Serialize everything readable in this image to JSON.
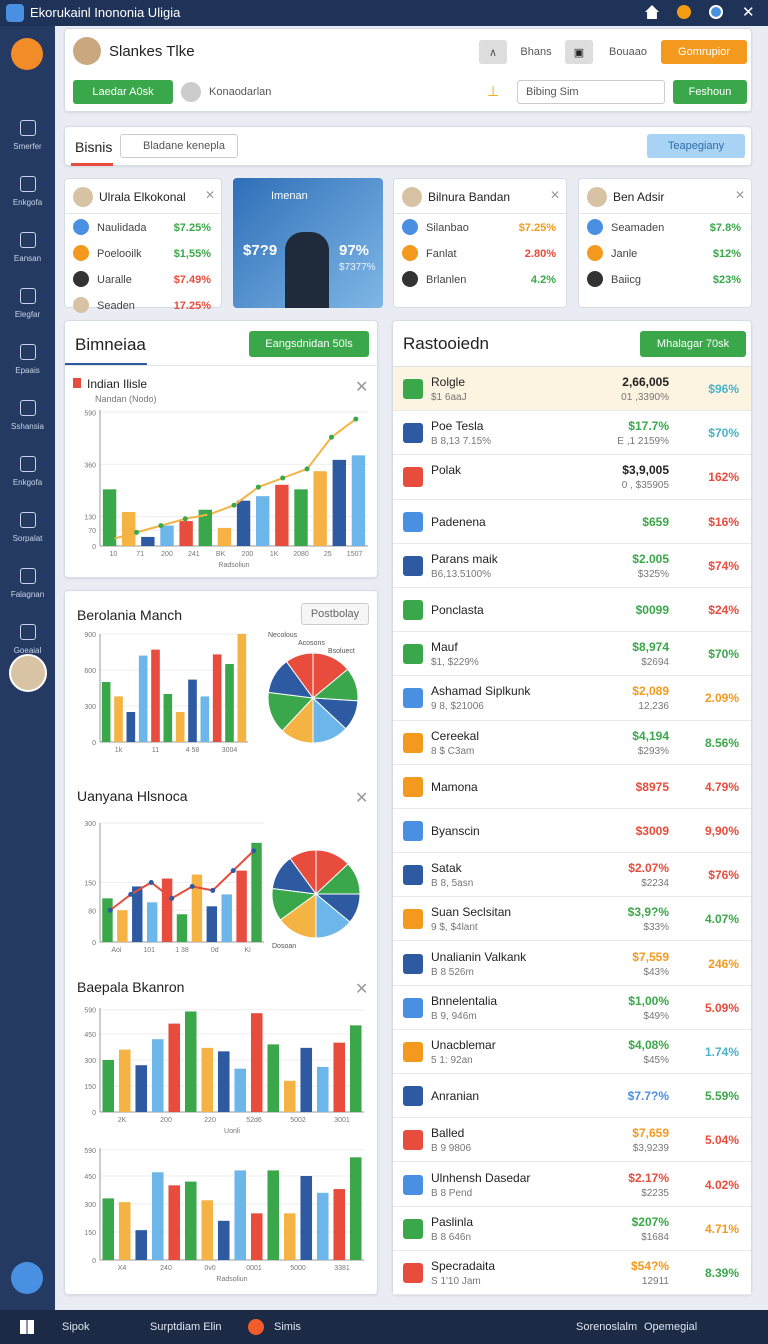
{
  "window": {
    "title": "Ekorukainl Inononia Uligia"
  },
  "sidebar": {
    "items": [
      "Smerfer",
      "Enkgofa",
      "Eansan",
      "Elegfar",
      "Epaais",
      "Sshansia",
      "Enkgofa",
      "Sorpalat",
      "Falagnan",
      "Goeaial"
    ]
  },
  "header": {
    "name": "Slankes Tlke",
    "buttons": [
      "Bhans",
      "Bouaao",
      "Gomrupior"
    ],
    "action": "Laedar A0sk",
    "user": "Konaodarlan",
    "dropdown": "Bibing Sim",
    "submit": "Feshoun"
  },
  "search": {
    "tab": "Bisnis",
    "placeholder": "Bladane kenepla",
    "button": "Teapegiany"
  },
  "cards": [
    {
      "title": "Ulrala Elkokonal",
      "rows": [
        {
          "label": "Naulidada",
          "value": "$7.25%"
        },
        {
          "label": "Poelooilk",
          "value": "$1,55%"
        },
        {
          "label": "Uaralle",
          "value": "$7.49%"
        },
        {
          "label": "Seaden",
          "value": "17.25%"
        }
      ]
    },
    {
      "title": "Imenan",
      "value": "$7?9",
      "percent": "97%",
      "sub": "$7377%"
    },
    {
      "title": "Bilnura Bandan",
      "rows": [
        {
          "label": "Silanbao",
          "value": "$7.25%"
        },
        {
          "label": "Fanlat",
          "value": "2.80%"
        },
        {
          "label": "Brlanlen",
          "value": "4.2%"
        }
      ]
    },
    {
      "title": "Ben Adsir",
      "rows": [
        {
          "label": "Seamaden",
          "value": "$7.8%"
        },
        {
          "label": "Janle",
          "value": "$12%"
        },
        {
          "label": "Baiicg",
          "value": "$23%"
        }
      ]
    }
  ],
  "panel_top": {
    "title": "Bimneiaa",
    "button": "Eangsdnidan 50ls"
  },
  "panel_bottom": {
    "sections": [
      "Berolania Manch",
      "Uanyana Hlsnoca",
      "Baepala Bkanron"
    ],
    "button": "Postbolay"
  },
  "charts": [
    {
      "type": "bar-line",
      "title": "Indian Ilisle",
      "subtitle": "Nandan (Nodo)",
      "xlabel": "Radsoliun",
      "ylim": [
        0,
        600
      ],
      "yticks": [
        0,
        70,
        130,
        360,
        590
      ],
      "categories": [
        "10",
        "71",
        "200",
        "241",
        "BK",
        "200",
        "1K",
        "2080",
        "25",
        "1507"
      ],
      "bars": [
        250,
        150,
        40,
        90,
        110,
        160,
        80,
        200,
        220,
        270,
        250,
        330,
        380,
        400
      ],
      "line": [
        30,
        60,
        90,
        120,
        140,
        180,
        260,
        300,
        340,
        480,
        560
      ]
    },
    {
      "type": "bar-pie",
      "ylim": [
        0,
        900
      ],
      "yticks": [
        0,
        300,
        600,
        900
      ],
      "categories": [
        "1k",
        "11",
        "4 58",
        "3004"
      ],
      "bars": [
        500,
        380,
        250,
        720,
        770,
        400,
        250,
        520,
        380,
        730,
        650,
        900
      ],
      "pie": [
        14,
        12,
        11,
        13,
        12,
        15,
        13,
        10
      ],
      "pie_labels": [
        "Necolous",
        "Acosons",
        "Bsoluect"
      ]
    },
    {
      "type": "bar-line-pie",
      "ylim": [
        0,
        300
      ],
      "yticks": [
        0,
        80,
        150,
        300
      ],
      "categories": [
        "Aoi",
        "101",
        "1 38",
        "0d",
        "Ki"
      ],
      "bars": [
        110,
        80,
        140,
        100,
        160,
        70,
        170,
        90,
        120,
        180,
        250
      ],
      "line": [
        80,
        120,
        150,
        110,
        140,
        130,
        180,
        230
      ],
      "pie": [
        13,
        12,
        11,
        14,
        15,
        12,
        13,
        10
      ],
      "pie_labels": [
        "Dosoan"
      ]
    },
    {
      "type": "bar",
      "xlabel": "Uonli",
      "ylim": [
        0,
        600
      ],
      "yticks": [
        0,
        150,
        300,
        450,
        590
      ],
      "categories": [
        "2K",
        "200",
        "220",
        "52d6",
        "5002",
        "3001"
      ],
      "bars": [
        300,
        360,
        270,
        420,
        510,
        580,
        370,
        350,
        250,
        570,
        390,
        180,
        370,
        260,
        400,
        500
      ]
    },
    {
      "type": "bar",
      "xlabel": "Radsoliun",
      "ylim": [
        0,
        600
      ],
      "yticks": [
        0,
        150,
        300,
        450,
        590
      ],
      "categories": [
        "X4",
        "240",
        "0v0",
        "0001",
        "5000",
        "3381"
      ],
      "bars": [
        330,
        310,
        160,
        470,
        400,
        420,
        320,
        210,
        480,
        250,
        480,
        250,
        450,
        360,
        380,
        550
      ]
    }
  ],
  "list": {
    "title": "Rastooiedn",
    "button": "Mhalagar 70sk",
    "rows": [
      {
        "name": "Rolgle",
        "sub": "$1 6aaJ",
        "value": "2,66,005",
        "subvalue": "01 ,3390%",
        "change": "$96%"
      },
      {
        "name": "Poe Tesla",
        "sub": "B 8,13 7.15%",
        "value": "$17.7%",
        "subvalue": "E ,1 2159%",
        "change": "$70%"
      },
      {
        "name": "Polak",
        "value": "$3,9,005",
        "subvalue": "0 , $35905",
        "change": "162%"
      },
      {
        "name": "Padenena",
        "value": "$659",
        "change": "$16%"
      },
      {
        "name": "Parans maik",
        "sub": "B6,13.5100%",
        "value": "$2.005",
        "subvalue": "$325%",
        "change": "$74%"
      },
      {
        "name": "Ponclasta",
        "value": "$0099",
        "change": "$24%"
      },
      {
        "name": "Mauf",
        "sub": "$1, $229%",
        "value": "$8,974",
        "subvalue": "$2694",
        "change": "$70%"
      },
      {
        "name": "Ashamad Siplkunk",
        "sub": "9 8, $21006",
        "value": "$2,089",
        "subvalue": "12,236",
        "change": "2.09%"
      },
      {
        "name": "Cereekal",
        "sub": "8 $ C3am",
        "value": "$4,194",
        "subvalue": "$293%",
        "change": "8.56%"
      },
      {
        "name": "Mamona",
        "value": "$8975",
        "change": "4.79%"
      },
      {
        "name": "Byanscin",
        "value": "$3009",
        "change": "9,90%"
      },
      {
        "name": "Satak",
        "sub": "B 8, 5asn",
        "value": "$2.07%",
        "subvalue": "$2234",
        "change": "$76%"
      },
      {
        "name": "Suan Seclsitan",
        "sub": "9 $, $4lant",
        "value": "$3,9?%",
        "subvalue": "$33%",
        "change": "4.07%"
      },
      {
        "name": "Unalianin Valkank",
        "sub": "B 8 526m",
        "value": "$7,559",
        "subvalue": "$43%",
        "change": "246%"
      },
      {
        "name": "Bnnelentalia",
        "sub": "B 9, 946m",
        "value": "$1,00%",
        "subvalue": "$49%",
        "change": "5.09%"
      },
      {
        "name": "Unacblemar",
        "sub": "5 1: 92an",
        "value": "$4,08%",
        "subvalue": "$45%",
        "change": "1.74%"
      },
      {
        "name": "Anranian",
        "value": "$7.7?%",
        "change": "5.59%"
      },
      {
        "name": "Balled",
        "sub": "B 9 9806",
        "value": "$7,659",
        "subvalue": "$3,9239",
        "change": "5.04%"
      },
      {
        "name": "Ulnhensh Dasedar",
        "sub": "B 8 Pend",
        "value": "$2.17%",
        "subvalue": "$2235",
        "change": "4.02%"
      },
      {
        "name": "Paslinla",
        "sub": "B 8 646n",
        "value": "$207%",
        "subvalue": "$1684",
        "change": "4.71%"
      },
      {
        "name": "Specradaita",
        "sub": "S 1'10 Jam",
        "value": "$54?%",
        "subvalue": "12911",
        "change": "8.39%"
      }
    ]
  },
  "taskbar": {
    "items": [
      "Sipok",
      "Surptdiam Elin",
      "Simis"
    ],
    "right": [
      "Sorenoslalm",
      "Opemegial"
    ]
  }
}
